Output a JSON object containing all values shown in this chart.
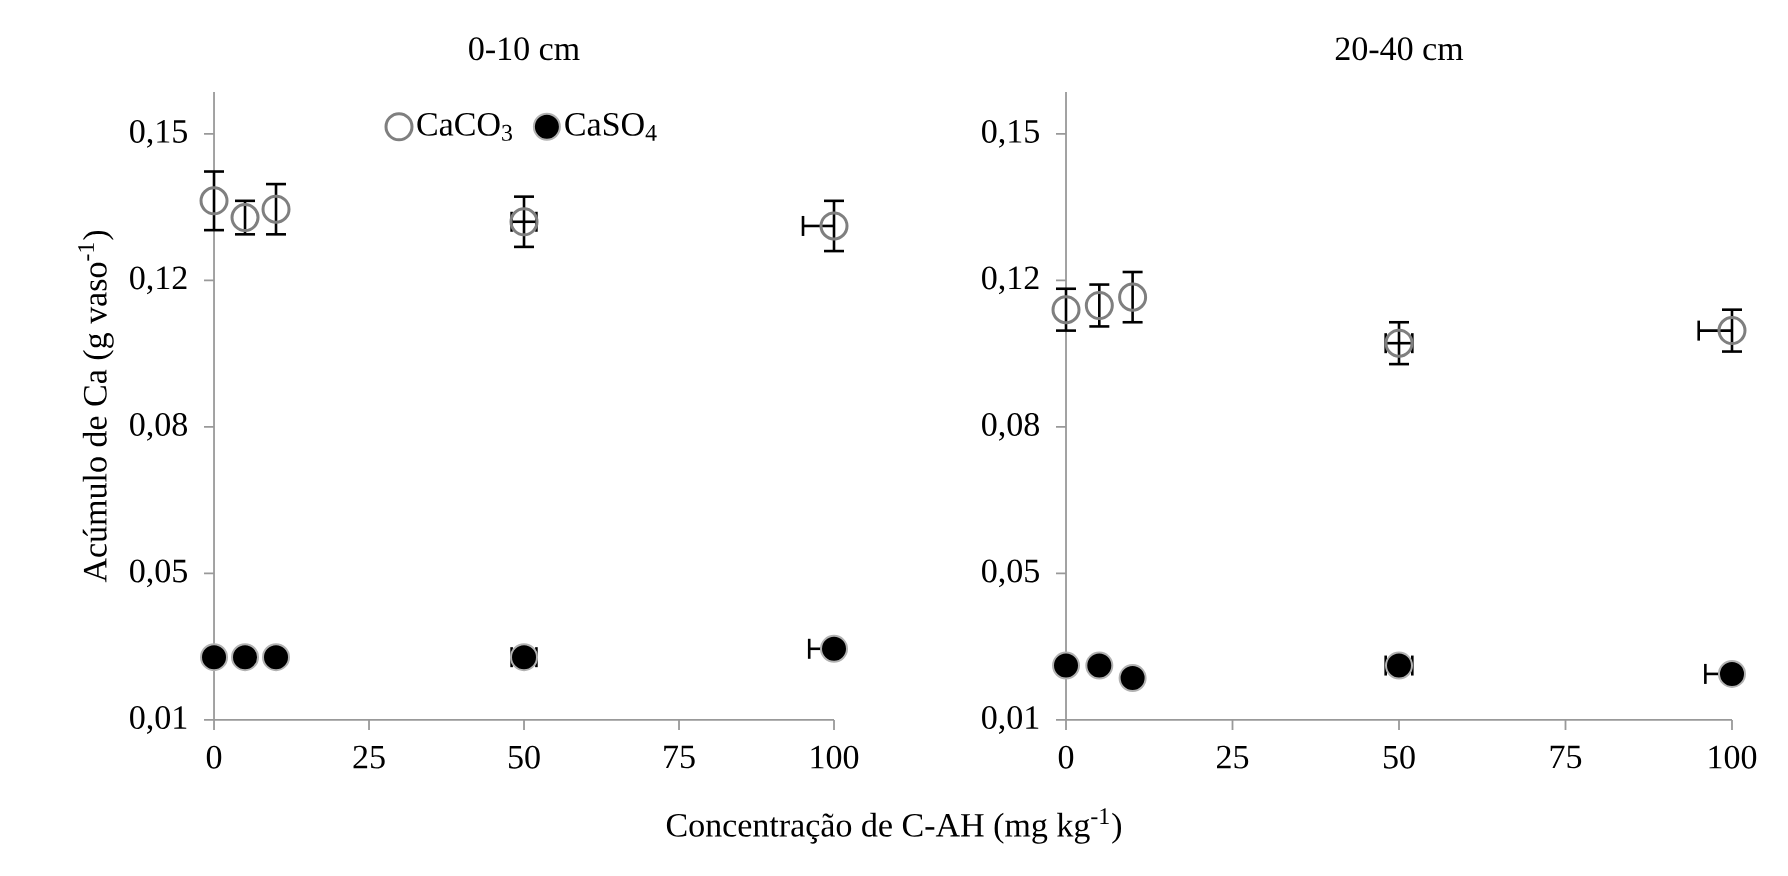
{
  "chart_data": [
    {
      "type": "scatter",
      "title": "0-10 cm",
      "xlabel": "Concentração de C-AH (mg kg$^{-1}$)",
      "ylabel": "Acúmulo de Ca (g vaso$^{-1}$)",
      "xlim": [
        0,
        100
      ],
      "xticks": [
        0,
        25,
        50,
        75,
        100
      ],
      "ylim": [
        0.01,
        0.16
      ],
      "yticks": [
        {
          "value": 0.01,
          "label": "0,01"
        },
        {
          "value": 0.045,
          "label": "0,05"
        },
        {
          "value": 0.08,
          "label": "0,08"
        },
        {
          "value": 0.115,
          "label": "0,12"
        },
        {
          "value": 0.15,
          "label": "0,15"
        }
      ],
      "legend": "top",
      "marker": "circle",
      "x": [
        0,
        5,
        10,
        50,
        100
      ],
      "series": [
        {
          "name": "CaCO$_{3}$",
          "color": "#7f7f7f",
          "values": [
            0.134,
            0.13,
            0.132,
            0.129,
            0.128
          ],
          "errors": [
            0.007,
            0.004,
            0.006,
            0.006,
            0.006
          ],
          "xerrors": [
            null,
            null,
            null,
            2,
            [
              95,
              100
            ]
          ]
        },
        {
          "name": "CaSO$_{4}$",
          "color": "#000000",
          "values": [
            0.025,
            0.025,
            0.025,
            0.025,
            0.027
          ],
          "xerrors": [
            null,
            null,
            null,
            2,
            [
              96,
              100
            ]
          ]
        }
      ]
    },
    {
      "type": "scatter",
      "title": "20-40 cm",
      "xlim": [
        0,
        100
      ],
      "xticks": [
        0,
        25,
        50,
        75,
        100
      ],
      "ylim": [
        0.01,
        0.16
      ],
      "yticks": [
        {
          "value": 0.01,
          "label": "0,01"
        },
        {
          "value": 0.045,
          "label": "0,05"
        },
        {
          "value": 0.08,
          "label": "0,08"
        },
        {
          "value": 0.115,
          "label": "0,12"
        },
        {
          "value": 0.15,
          "label": "0,15"
        }
      ],
      "marker": "circle",
      "x": [
        0,
        5,
        10,
        50,
        100
      ],
      "series": [
        {
          "color": "#7f7f7f",
          "values": [
            0.108,
            0.109,
            0.111,
            0.1,
            0.103
          ],
          "errors": [
            0.005,
            0.005,
            0.006,
            0.005,
            0.005
          ],
          "xerrors": [
            null,
            null,
            null,
            2,
            [
              95,
              100
            ]
          ]
        },
        {
          "color": "#000000",
          "values": [
            0.023,
            0.023,
            0.02,
            0.023,
            0.021
          ],
          "xerrors": [
            null,
            null,
            null,
            2,
            [
              96,
              100
            ]
          ]
        }
      ]
    }
  ]
}
